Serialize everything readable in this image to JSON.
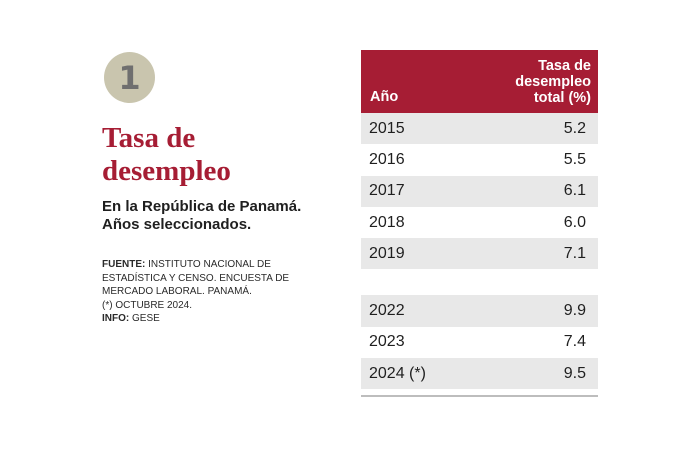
{
  "badge": {
    "number": "1"
  },
  "title": {
    "line1": "Tasa de",
    "line2": "desempleo"
  },
  "subtitle": {
    "line1": "En la República de Panamá.",
    "line2": "Años seleccionados."
  },
  "source": {
    "fuente_label": "FUENTE:",
    "fuente_line1": " INSTITUTO NACIONAL DE",
    "fuente_line2": "ESTADÍSTICA Y CENSO. ENCUESTA DE",
    "fuente_line3": "MERCADO LABORAL. PANAMÁ.",
    "note": "(*) OCTUBRE 2024.",
    "info_label": "INFO:",
    "info_value": " GESE"
  },
  "table": {
    "header_year": "Año",
    "header_rate_line1": "Tasa de",
    "header_rate_line2": "desempleo",
    "header_rate_line3": "total (%)",
    "group1": [
      {
        "year": "2015",
        "rate": "5.2"
      },
      {
        "year": "2016",
        "rate": "5.5"
      },
      {
        "year": "2017",
        "rate": "6.1"
      },
      {
        "year": "2018",
        "rate": "6.0"
      },
      {
        "year": "2019",
        "rate": "7.1"
      }
    ],
    "group2": [
      {
        "year": "2022",
        "rate": "9.9"
      },
      {
        "year": "2023",
        "rate": "7.4"
      },
      {
        "year": "2024 (*)",
        "rate": "9.5"
      }
    ]
  },
  "colors": {
    "accent": "#a61d34",
    "badge": "#c9c5ae",
    "row_shade": "#e8e8e8"
  }
}
